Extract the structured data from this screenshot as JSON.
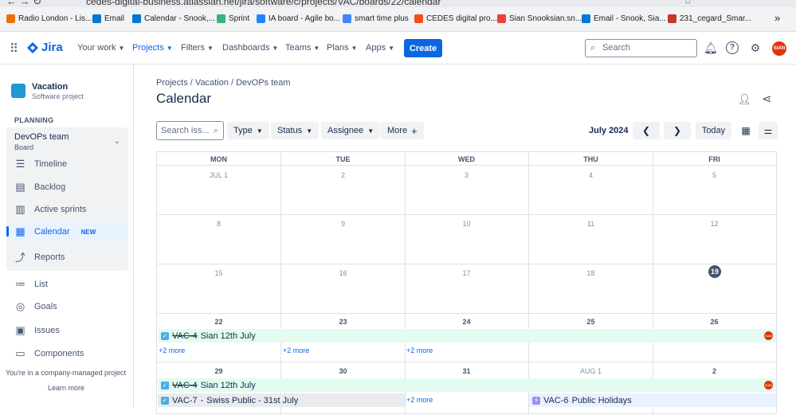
{
  "browser": {
    "url": "cedes-digital-business.atlassian.net/jira/software/c/projects/VAC/boards/22/calendar",
    "bookmarks": [
      "Radio London - Lis...",
      "Email",
      "Calendar - Snook,...",
      "Sprint",
      "IA board - Agile bo...",
      "smart time plus",
      "CEDES digital pro...",
      "Sian Snooksian.sn...",
      "Email - Snook, Sia...",
      "231_cegard_Smar..."
    ],
    "overflow": "»"
  },
  "topnav": {
    "brand": "Jira",
    "items": [
      "Your work",
      "Projects",
      "Filters",
      "Dashboards",
      "Teams",
      "Plans",
      "Apps"
    ],
    "create": "Create",
    "search_placeholder": "Search",
    "avatar": "SIAN"
  },
  "sidebar": {
    "project_name": "Vacation",
    "project_type": "Software project",
    "planning_label": "PLANNING",
    "board_name": "DevOPs team",
    "board_sub": "Board",
    "nav": [
      "Timeline",
      "Backlog",
      "Active sprints",
      "Calendar",
      "Reports"
    ],
    "calendar_badge": "NEW",
    "other": [
      "List",
      "Goals",
      "Issues",
      "Components"
    ],
    "managed_note": "You're in a company-managed project",
    "learn_more": "Learn more"
  },
  "header": {
    "breadcrumb": [
      "Projects",
      "Vacation",
      "DevOPs team"
    ],
    "title": "Calendar"
  },
  "filters": {
    "search_placeholder": "Search iss...",
    "buttons": [
      "Type",
      "Status",
      "Assignee",
      "More"
    ],
    "month": "July 2024",
    "today": "Today"
  },
  "calendar": {
    "weekdays": [
      "MON",
      "TUE",
      "WED",
      "THU",
      "FRI"
    ],
    "weeks": [
      [
        "JUL 1",
        "2",
        "3",
        "4",
        "5"
      ],
      [
        "8",
        "9",
        "10",
        "11",
        "12"
      ],
      [
        "15",
        "16",
        "17",
        "18",
        "19"
      ],
      [
        "22",
        "23",
        "24",
        "25",
        "26"
      ],
      [
        "29",
        "30",
        "31",
        "AUG 1",
        "2"
      ]
    ],
    "today": "19",
    "events": [
      {
        "key": "VAC-4",
        "title": "Sian 12th July",
        "avatar": "SIAN"
      },
      {
        "key": "VAC-4",
        "title": "Sian 12th July",
        "avatar": "SIAN"
      },
      {
        "key": "VAC-7",
        "title": "Swiss Public - 31st July"
      },
      {
        "key": "VAC-6",
        "title": "Public Holidays"
      }
    ],
    "more": "+2 more"
  },
  "colors": {
    "accent": "#0c66e4",
    "event_green": "#e3fcef",
    "event_grey": "#e9ebee",
    "event_blue": "#e9f2ff",
    "avatar": "#de350b"
  }
}
